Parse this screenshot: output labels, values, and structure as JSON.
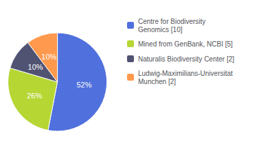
{
  "chart_data": {
    "type": "pie",
    "categories": [
      "Centre for Biodiversity\nGenomics [10]",
      "Mined from GenBank, NCBI [5]",
      "Naturalis Biodiversity Center [2]",
      "Ludwig-Maximilians-Universitat\nMunchen [2]"
    ],
    "values": [
      52,
      26,
      10,
      10
    ],
    "value_labels": [
      "52%",
      "26%",
      "10%",
      "10%"
    ],
    "data_labels": true,
    "legend": "right"
  }
}
